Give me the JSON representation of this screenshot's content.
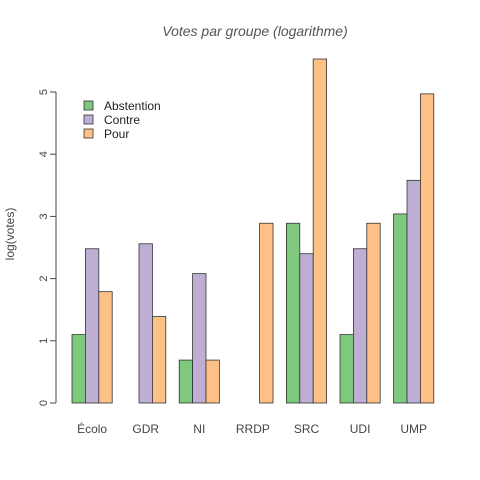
{
  "chart_data": {
    "type": "bar",
    "title": "Votes par groupe (logarithme)",
    "xlabel": "",
    "ylabel": "log(votes)",
    "ylim": [
      0,
      5.6
    ],
    "yticks": [
      "0",
      "1",
      "2",
      "3",
      "4",
      "5"
    ],
    "grid": false,
    "legend_position": "top-left",
    "categories": [
      "Écolo",
      "GDR",
      "NI",
      "RRDP",
      "SRC",
      "UDI",
      "UMP"
    ],
    "series": [
      {
        "name": "Abstention",
        "color": "#7fc97f",
        "values": [
          1.1,
          0.0,
          0.69,
          0.0,
          2.89,
          1.1,
          3.04
        ]
      },
      {
        "name": "Contre",
        "color": "#beaed4",
        "values": [
          2.48,
          2.56,
          2.08,
          0.0,
          2.4,
          2.48,
          3.58
        ]
      },
      {
        "name": "Pour",
        "color": "#fdc086",
        "values": [
          1.79,
          1.39,
          0.69,
          2.89,
          5.53,
          2.89,
          4.97
        ]
      }
    ]
  }
}
